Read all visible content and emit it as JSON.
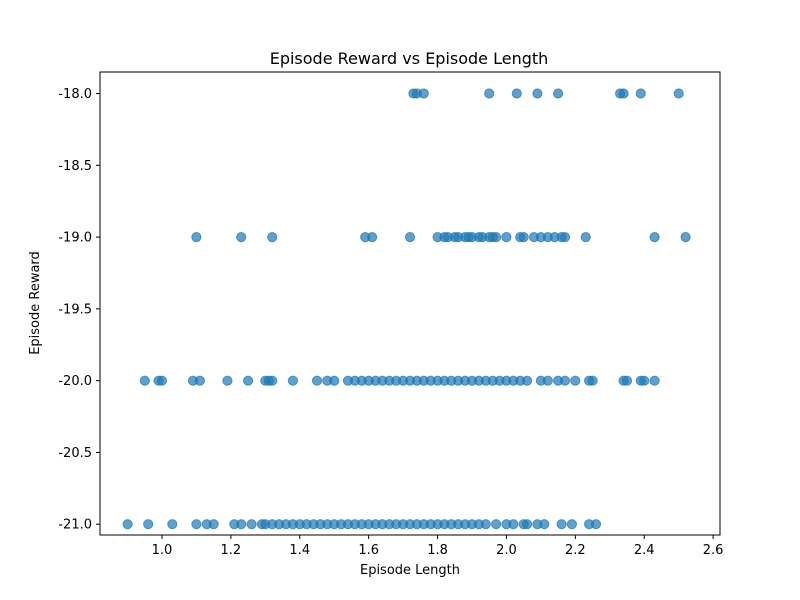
{
  "chart_data": {
    "type": "scatter",
    "title": "Episode Reward vs Episode Length",
    "xlabel": "Episode Length",
    "ylabel": "Episode Reward",
    "xlim": [
      0.82,
      2.62
    ],
    "ylim": [
      -21.075,
      -17.85
    ],
    "x_ticks": [
      "1.0",
      "1.2",
      "1.4",
      "1.6",
      "1.8",
      "2.0",
      "2.2",
      "2.4",
      "2.6"
    ],
    "y_ticks": [
      "-18.0",
      "-18.5",
      "-19.0",
      "-19.5",
      "-20.0",
      "-20.5",
      "-21.0"
    ],
    "grid": false,
    "marker_color": "#1f77b4",
    "marker_alpha": 0.7,
    "series": [
      {
        "points": [
          {
            "x": 1.73,
            "y": -18.0
          },
          {
            "x": 1.74,
            "y": -18.0
          },
          {
            "x": 1.76,
            "y": -18.0
          },
          {
            "x": 1.95,
            "y": -18.0
          },
          {
            "x": 2.03,
            "y": -18.0
          },
          {
            "x": 2.09,
            "y": -18.0
          },
          {
            "x": 2.15,
            "y": -18.0
          },
          {
            "x": 2.33,
            "y": -18.0
          },
          {
            "x": 2.34,
            "y": -18.0
          },
          {
            "x": 2.39,
            "y": -18.0
          },
          {
            "x": 2.5,
            "y": -18.0
          },
          {
            "x": 1.1,
            "y": -19.0
          },
          {
            "x": 1.23,
            "y": -19.0
          },
          {
            "x": 1.32,
            "y": -19.0
          },
          {
            "x": 1.59,
            "y": -19.0
          },
          {
            "x": 1.61,
            "y": -19.0
          },
          {
            "x": 1.72,
            "y": -19.0
          },
          {
            "x": 1.8,
            "y": -19.0
          },
          {
            "x": 1.82,
            "y": -19.0
          },
          {
            "x": 1.83,
            "y": -19.0
          },
          {
            "x": 1.85,
            "y": -19.0
          },
          {
            "x": 1.86,
            "y": -19.0
          },
          {
            "x": 1.88,
            "y": -19.0
          },
          {
            "x": 1.89,
            "y": -19.0
          },
          {
            "x": 1.9,
            "y": -19.0
          },
          {
            "x": 1.92,
            "y": -19.0
          },
          {
            "x": 1.93,
            "y": -19.0
          },
          {
            "x": 1.95,
            "y": -19.0
          },
          {
            "x": 1.96,
            "y": -19.0
          },
          {
            "x": 1.97,
            "y": -19.0
          },
          {
            "x": 2.0,
            "y": -19.0
          },
          {
            "x": 2.04,
            "y": -19.0
          },
          {
            "x": 2.05,
            "y": -19.0
          },
          {
            "x": 2.08,
            "y": -19.0
          },
          {
            "x": 2.1,
            "y": -19.0
          },
          {
            "x": 2.12,
            "y": -19.0
          },
          {
            "x": 2.14,
            "y": -19.0
          },
          {
            "x": 2.16,
            "y": -19.0
          },
          {
            "x": 2.17,
            "y": -19.0
          },
          {
            "x": 2.23,
            "y": -19.0
          },
          {
            "x": 2.43,
            "y": -19.0
          },
          {
            "x": 2.52,
            "y": -19.0
          },
          {
            "x": 0.95,
            "y": -20.0
          },
          {
            "x": 0.99,
            "y": -20.0
          },
          {
            "x": 1.0,
            "y": -20.0
          },
          {
            "x": 1.09,
            "y": -20.0
          },
          {
            "x": 1.11,
            "y": -20.0
          },
          {
            "x": 1.19,
            "y": -20.0
          },
          {
            "x": 1.25,
            "y": -20.0
          },
          {
            "x": 1.3,
            "y": -20.0
          },
          {
            "x": 1.31,
            "y": -20.0
          },
          {
            "x": 1.32,
            "y": -20.0
          },
          {
            "x": 1.38,
            "y": -20.0
          },
          {
            "x": 1.45,
            "y": -20.0
          },
          {
            "x": 1.48,
            "y": -20.0
          },
          {
            "x": 1.5,
            "y": -20.0
          },
          {
            "x": 1.54,
            "y": -20.0
          },
          {
            "x": 1.56,
            "y": -20.0
          },
          {
            "x": 1.58,
            "y": -20.0
          },
          {
            "x": 1.6,
            "y": -20.0
          },
          {
            "x": 1.62,
            "y": -20.0
          },
          {
            "x": 1.64,
            "y": -20.0
          },
          {
            "x": 1.66,
            "y": -20.0
          },
          {
            "x": 1.68,
            "y": -20.0
          },
          {
            "x": 1.7,
            "y": -20.0
          },
          {
            "x": 1.72,
            "y": -20.0
          },
          {
            "x": 1.74,
            "y": -20.0
          },
          {
            "x": 1.76,
            "y": -20.0
          },
          {
            "x": 1.78,
            "y": -20.0
          },
          {
            "x": 1.8,
            "y": -20.0
          },
          {
            "x": 1.82,
            "y": -20.0
          },
          {
            "x": 1.84,
            "y": -20.0
          },
          {
            "x": 1.86,
            "y": -20.0
          },
          {
            "x": 1.88,
            "y": -20.0
          },
          {
            "x": 1.9,
            "y": -20.0
          },
          {
            "x": 1.92,
            "y": -20.0
          },
          {
            "x": 1.94,
            "y": -20.0
          },
          {
            "x": 1.96,
            "y": -20.0
          },
          {
            "x": 1.98,
            "y": -20.0
          },
          {
            "x": 2.0,
            "y": -20.0
          },
          {
            "x": 2.02,
            "y": -20.0
          },
          {
            "x": 2.04,
            "y": -20.0
          },
          {
            "x": 2.06,
            "y": -20.0
          },
          {
            "x": 2.1,
            "y": -20.0
          },
          {
            "x": 2.12,
            "y": -20.0
          },
          {
            "x": 2.15,
            "y": -20.0
          },
          {
            "x": 2.17,
            "y": -20.0
          },
          {
            "x": 2.2,
            "y": -20.0
          },
          {
            "x": 2.24,
            "y": -20.0
          },
          {
            "x": 2.25,
            "y": -20.0
          },
          {
            "x": 2.34,
            "y": -20.0
          },
          {
            "x": 2.35,
            "y": -20.0
          },
          {
            "x": 2.39,
            "y": -20.0
          },
          {
            "x": 2.4,
            "y": -20.0
          },
          {
            "x": 2.43,
            "y": -20.0
          },
          {
            "x": 0.9,
            "y": -21.0
          },
          {
            "x": 0.96,
            "y": -21.0
          },
          {
            "x": 1.03,
            "y": -21.0
          },
          {
            "x": 1.1,
            "y": -21.0
          },
          {
            "x": 1.13,
            "y": -21.0
          },
          {
            "x": 1.15,
            "y": -21.0
          },
          {
            "x": 1.21,
            "y": -21.0
          },
          {
            "x": 1.23,
            "y": -21.0
          },
          {
            "x": 1.26,
            "y": -21.0
          },
          {
            "x": 1.29,
            "y": -21.0
          },
          {
            "x": 1.3,
            "y": -21.0
          },
          {
            "x": 1.32,
            "y": -21.0
          },
          {
            "x": 1.34,
            "y": -21.0
          },
          {
            "x": 1.36,
            "y": -21.0
          },
          {
            "x": 1.38,
            "y": -21.0
          },
          {
            "x": 1.4,
            "y": -21.0
          },
          {
            "x": 1.42,
            "y": -21.0
          },
          {
            "x": 1.44,
            "y": -21.0
          },
          {
            "x": 1.46,
            "y": -21.0
          },
          {
            "x": 1.48,
            "y": -21.0
          },
          {
            "x": 1.5,
            "y": -21.0
          },
          {
            "x": 1.52,
            "y": -21.0
          },
          {
            "x": 1.54,
            "y": -21.0
          },
          {
            "x": 1.56,
            "y": -21.0
          },
          {
            "x": 1.58,
            "y": -21.0
          },
          {
            "x": 1.6,
            "y": -21.0
          },
          {
            "x": 1.62,
            "y": -21.0
          },
          {
            "x": 1.64,
            "y": -21.0
          },
          {
            "x": 1.66,
            "y": -21.0
          },
          {
            "x": 1.68,
            "y": -21.0
          },
          {
            "x": 1.7,
            "y": -21.0
          },
          {
            "x": 1.72,
            "y": -21.0
          },
          {
            "x": 1.74,
            "y": -21.0
          },
          {
            "x": 1.76,
            "y": -21.0
          },
          {
            "x": 1.78,
            "y": -21.0
          },
          {
            "x": 1.8,
            "y": -21.0
          },
          {
            "x": 1.82,
            "y": -21.0
          },
          {
            "x": 1.84,
            "y": -21.0
          },
          {
            "x": 1.86,
            "y": -21.0
          },
          {
            "x": 1.88,
            "y": -21.0
          },
          {
            "x": 1.9,
            "y": -21.0
          },
          {
            "x": 1.92,
            "y": -21.0
          },
          {
            "x": 1.94,
            "y": -21.0
          },
          {
            "x": 1.97,
            "y": -21.0
          },
          {
            "x": 2.0,
            "y": -21.0
          },
          {
            "x": 2.02,
            "y": -21.0
          },
          {
            "x": 2.05,
            "y": -21.0
          },
          {
            "x": 2.06,
            "y": -21.0
          },
          {
            "x": 2.09,
            "y": -21.0
          },
          {
            "x": 2.11,
            "y": -21.0
          },
          {
            "x": 2.16,
            "y": -21.0
          },
          {
            "x": 2.19,
            "y": -21.0
          },
          {
            "x": 2.24,
            "y": -21.0
          },
          {
            "x": 2.26,
            "y": -21.0
          }
        ]
      }
    ]
  }
}
